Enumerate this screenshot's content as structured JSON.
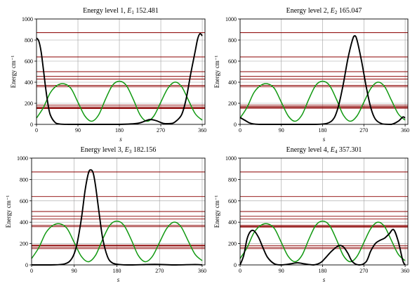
{
  "colors": {
    "background": "#ffffff",
    "grid": "#a0a0a0",
    "energy_lines": "#8b0000",
    "potential": "#119911",
    "probability": "#000000"
  },
  "chart_data": [
    {
      "type": "line",
      "title": "Energy level 1,",
      "symbol": "E1",
      "symbol_main": "E",
      "symbol_sub": "1",
      "energy": "152.481",
      "xlabel": "s",
      "ylabel": "Energy  cm⁻¹",
      "xlim": [
        0,
        366
      ],
      "ylim": [
        0,
        1000
      ],
      "xticks": [
        0,
        90,
        180,
        270,
        360
      ],
      "yticks": [
        0,
        200,
        400,
        600,
        800,
        1000
      ],
      "grid": true,
      "energy_levels": [
        152.481,
        165.047,
        182.156,
        357.301,
        370,
        430,
        455,
        500,
        640,
        870
      ],
      "highlight_level": 0,
      "series": [
        {
          "role": "potential",
          "x": [
            0,
            15,
            30,
            45,
            60,
            75,
            90,
            105,
            120,
            135,
            150,
            165,
            180,
            195,
            210,
            225,
            240,
            255,
            270,
            285,
            300,
            315,
            330,
            345,
            360
          ],
          "y": [
            60,
            160,
            300,
            370,
            385,
            340,
            210,
            80,
            30,
            90,
            240,
            370,
            410,
            370,
            240,
            90,
            30,
            80,
            210,
            340,
            400,
            360,
            230,
            100,
            40
          ]
        },
        {
          "role": "probability",
          "x": [
            0,
            5,
            10,
            15,
            20,
            25,
            30,
            40,
            50,
            70,
            100,
            180,
            220,
            245,
            260,
            275,
            290,
            300,
            315,
            325,
            335,
            345,
            350,
            355,
            360
          ],
          "y": [
            820,
            790,
            690,
            520,
            340,
            190,
            90,
            20,
            4,
            0,
            0,
            0,
            10,
            45,
            35,
            10,
            8,
            20,
            90,
            240,
            480,
            700,
            810,
            860,
            840
          ]
        }
      ]
    },
    {
      "type": "line",
      "title": "Energy level 2,",
      "symbol": "E2",
      "symbol_main": "E",
      "symbol_sub": "2",
      "energy": "165.047",
      "xlabel": "s",
      "ylabel": "Energy  cm⁻¹",
      "xlim": [
        0,
        366
      ],
      "ylim": [
        0,
        1000
      ],
      "xticks": [
        0,
        90,
        180,
        270,
        360
      ],
      "yticks": [
        0,
        200,
        400,
        600,
        800,
        1000
      ],
      "grid": true,
      "energy_levels": [
        152.481,
        165.047,
        182.156,
        357.301,
        370,
        430,
        455,
        500,
        640,
        870
      ],
      "highlight_level": 1,
      "series": [
        {
          "role": "potential",
          "x": [
            0,
            15,
            30,
            45,
            60,
            75,
            90,
            105,
            120,
            135,
            150,
            165,
            180,
            195,
            210,
            225,
            240,
            255,
            270,
            285,
            300,
            315,
            330,
            345,
            360
          ],
          "y": [
            60,
            160,
            300,
            370,
            385,
            340,
            210,
            80,
            30,
            90,
            240,
            370,
            410,
            370,
            240,
            90,
            30,
            80,
            210,
            340,
            400,
            360,
            230,
            100,
            40
          ]
        },
        {
          "role": "probability",
          "x": [
            0,
            10,
            20,
            30,
            45,
            90,
            160,
            190,
            205,
            215,
            225,
            235,
            245,
            250,
            255,
            265,
            275,
            285,
            295,
            310,
            330,
            345,
            355,
            360
          ],
          "y": [
            65,
            40,
            15,
            4,
            0,
            0,
            0,
            10,
            60,
            180,
            380,
            620,
            800,
            840,
            800,
            600,
            360,
            160,
            50,
            5,
            0,
            30,
            70,
            60
          ]
        }
      ]
    },
    {
      "type": "line",
      "title": "Energy level 3,",
      "symbol": "E3",
      "symbol_main": "E",
      "symbol_sub": "3",
      "energy": "182.156",
      "xlabel": "s",
      "ylabel": "Energy  cm⁻¹",
      "xlim": [
        0,
        366
      ],
      "ylim": [
        0,
        1000
      ],
      "xticks": [
        0,
        90,
        180,
        270,
        360
      ],
      "yticks": [
        0,
        200,
        400,
        600,
        800,
        1000
      ],
      "grid": true,
      "energy_levels": [
        152.481,
        165.047,
        182.156,
        357.301,
        370,
        430,
        455,
        500,
        640,
        870
      ],
      "highlight_level": 2,
      "series": [
        {
          "role": "potential",
          "x": [
            0,
            15,
            30,
            45,
            60,
            75,
            90,
            105,
            120,
            135,
            150,
            165,
            180,
            195,
            210,
            225,
            240,
            255,
            270,
            285,
            300,
            315,
            330,
            345,
            360
          ],
          "y": [
            60,
            160,
            300,
            370,
            385,
            340,
            210,
            80,
            30,
            90,
            240,
            370,
            410,
            370,
            240,
            90,
            30,
            80,
            210,
            340,
            400,
            360,
            230,
            100,
            40
          ]
        },
        {
          "role": "probability",
          "x": [
            0,
            40,
            70,
            85,
            95,
            105,
            113,
            120,
            125,
            130,
            135,
            143,
            150,
            160,
            170,
            185,
            210,
            260,
            300,
            345,
            360
          ],
          "y": [
            0,
            0,
            10,
            60,
            180,
            430,
            700,
            860,
            890,
            860,
            740,
            470,
            250,
            80,
            20,
            4,
            0,
            5,
            0,
            4,
            0
          ]
        }
      ]
    },
    {
      "type": "line",
      "title": "Energy level 4,",
      "symbol": "E4",
      "symbol_main": "E",
      "symbol_sub": "4",
      "energy": "357.301",
      "xlabel": "s",
      "ylabel": "Energy  cm⁻¹",
      "xlim": [
        0,
        366
      ],
      "ylim": [
        0,
        1000
      ],
      "xticks": [
        0,
        90,
        180,
        270,
        360
      ],
      "yticks": [
        0,
        200,
        400,
        600,
        800,
        1000
      ],
      "grid": true,
      "energy_levels": [
        152.481,
        165.047,
        182.156,
        357.301,
        370,
        430,
        455,
        500,
        640,
        870
      ],
      "highlight_level": 3,
      "series": [
        {
          "role": "potential",
          "x": [
            0,
            15,
            30,
            45,
            60,
            75,
            90,
            105,
            120,
            135,
            150,
            165,
            180,
            195,
            210,
            225,
            240,
            255,
            270,
            285,
            300,
            315,
            330,
            345,
            360
          ],
          "y": [
            60,
            160,
            300,
            370,
            385,
            340,
            210,
            80,
            30,
            90,
            240,
            370,
            410,
            370,
            240,
            90,
            30,
            80,
            210,
            340,
            400,
            360,
            230,
            100,
            40
          ]
        },
        {
          "role": "probability",
          "x": [
            0,
            8,
            15,
            22,
            30,
            40,
            50,
            60,
            75,
            90,
            110,
            125,
            140,
            160,
            175,
            185,
            200,
            215,
            225,
            235,
            245,
            260,
            275,
            285,
            295,
            305,
            315,
            325,
            335,
            345,
            355,
            360
          ],
          "y": [
            0,
            90,
            240,
            310,
            320,
            260,
            160,
            70,
            10,
            0,
            10,
            20,
            10,
            0,
            20,
            60,
            130,
            180,
            170,
            110,
            30,
            0,
            30,
            130,
            200,
            230,
            250,
            290,
            330,
            220,
            40,
            0
          ]
        }
      ]
    }
  ]
}
